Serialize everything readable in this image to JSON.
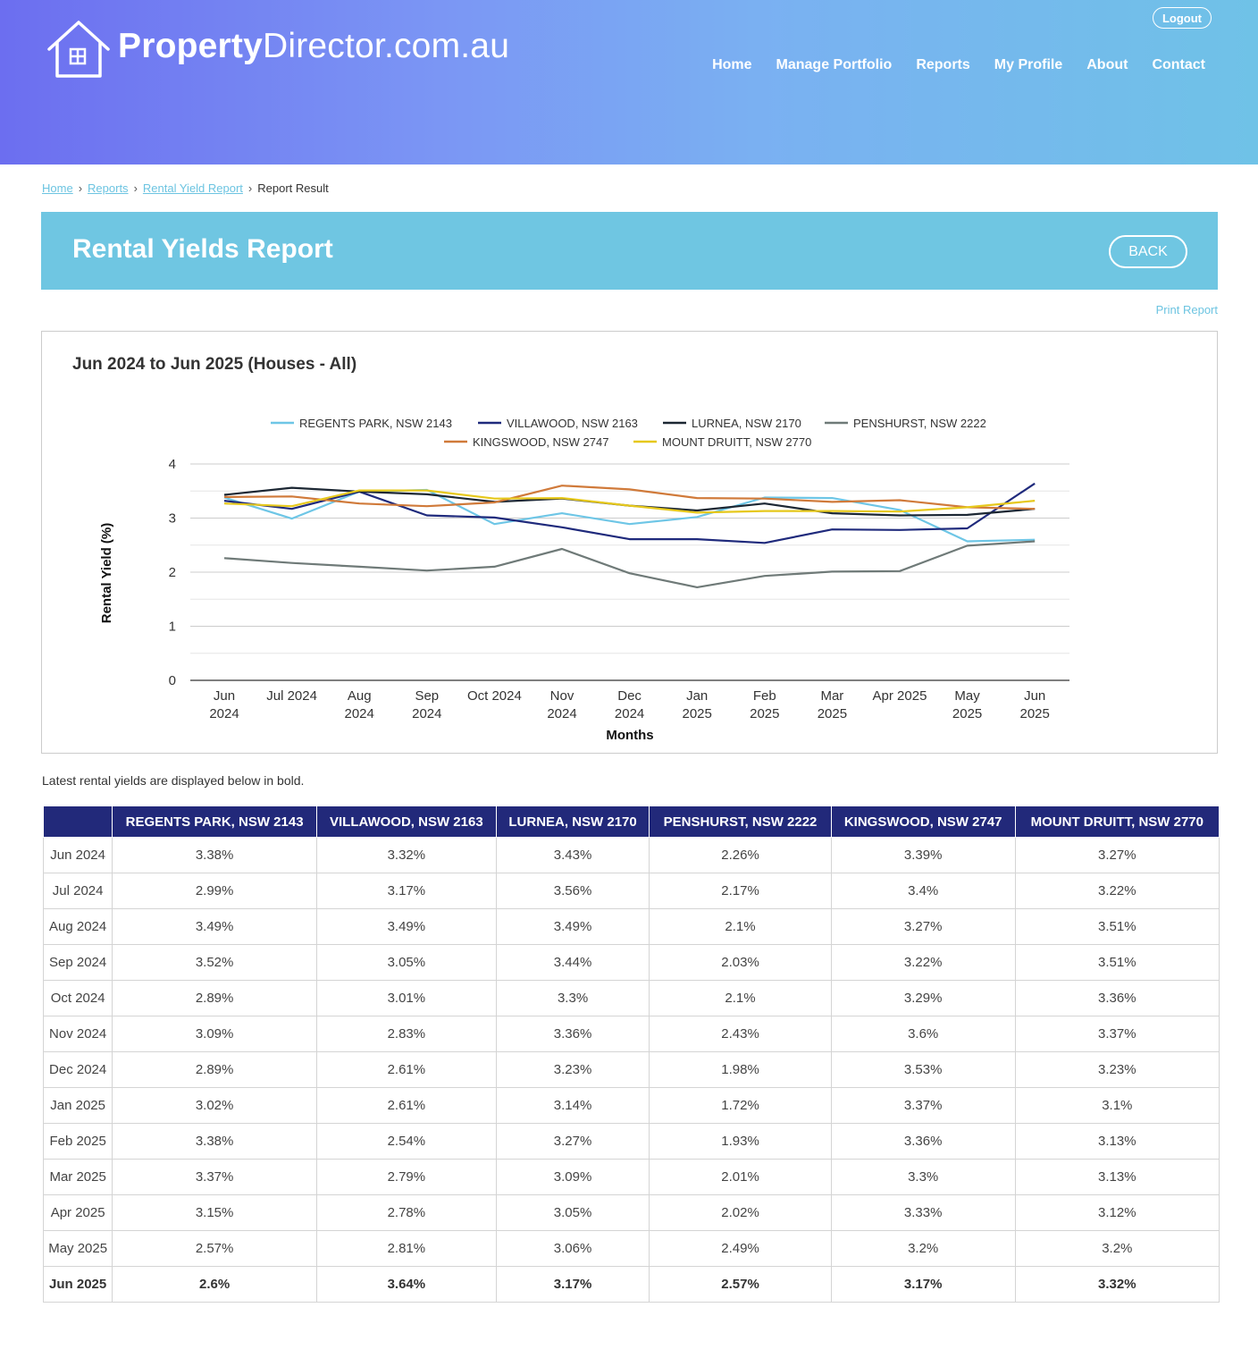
{
  "brand": {
    "logo_bold": "Property",
    "logo_regular": "Director.com.au"
  },
  "header": {
    "logout_label": "Logout",
    "nav": [
      "Home",
      "Manage Portfolio",
      "Reports",
      "My Profile",
      "About",
      "Contact"
    ]
  },
  "breadcrumb": {
    "home": "Home",
    "reports": "Reports",
    "rental_yield": "Rental Yield Report",
    "current": "Report Result"
  },
  "banner": {
    "title": "Rental Yields Report",
    "back_label": "BACK"
  },
  "print_label": "Print Report",
  "note": "Latest rental yields are displayed below in bold.",
  "colors": {
    "header_start": "#6c6ef0",
    "header_end": "#6fc2e7",
    "banner": "#6fc6e2",
    "table_header": "#22297a",
    "link": "#6cc4e1"
  },
  "chart_data": {
    "type": "line",
    "title": "Jun 2024 to Jun 2025 (Houses - All)",
    "xlabel": "Months",
    "ylabel": "Rental Yield (%)",
    "ylim": [
      0,
      4
    ],
    "yticks": [
      0,
      1,
      2,
      3,
      4
    ],
    "grid": true,
    "legend_position": "top",
    "categories": [
      [
        "Jun",
        "2024"
      ],
      [
        "Jul 2024"
      ],
      [
        "Aug",
        "2024"
      ],
      [
        "Sep",
        "2024"
      ],
      [
        "Oct 2024"
      ],
      [
        "Nov",
        "2024"
      ],
      [
        "Dec",
        "2024"
      ],
      [
        "Jan",
        "2025"
      ],
      [
        "Feb",
        "2025"
      ],
      [
        "Mar",
        "2025"
      ],
      [
        "Apr 2025"
      ],
      [
        "May",
        "2025"
      ],
      [
        "Jun",
        "2025"
      ]
    ],
    "series": [
      {
        "name": "REGENTS PARK, NSW 2143",
        "color": "#6ec6e6",
        "values": [
          3.38,
          2.99,
          3.49,
          3.52,
          2.89,
          3.09,
          2.89,
          3.02,
          3.38,
          3.37,
          3.15,
          2.57,
          2.6
        ]
      },
      {
        "name": "VILLAWOOD, NSW 2163",
        "color": "#1f2a7c",
        "values": [
          3.32,
          3.17,
          3.49,
          3.05,
          3.01,
          2.83,
          2.61,
          2.61,
          2.54,
          2.79,
          2.78,
          2.81,
          3.64
        ]
      },
      {
        "name": "LURNEA, NSW 2170",
        "color": "#1c2733",
        "values": [
          3.43,
          3.56,
          3.49,
          3.44,
          3.3,
          3.36,
          3.23,
          3.14,
          3.27,
          3.09,
          3.05,
          3.06,
          3.17
        ]
      },
      {
        "name": "PENSHURST, NSW 2222",
        "color": "#6f7a78",
        "values": [
          2.26,
          2.17,
          2.1,
          2.03,
          2.1,
          2.43,
          1.98,
          1.72,
          1.93,
          2.01,
          2.02,
          2.49,
          2.57
        ]
      },
      {
        "name": "KINGSWOOD, NSW 2747",
        "color": "#d07a3a",
        "values": [
          3.39,
          3.4,
          3.27,
          3.22,
          3.29,
          3.6,
          3.53,
          3.37,
          3.36,
          3.3,
          3.33,
          3.2,
          3.17
        ]
      },
      {
        "name": "MOUNT DRUITT, NSW 2770",
        "color": "#e6c81c",
        "values": [
          3.27,
          3.22,
          3.51,
          3.51,
          3.36,
          3.37,
          3.23,
          3.1,
          3.13,
          3.13,
          3.12,
          3.2,
          3.32
        ]
      }
    ]
  },
  "table": {
    "headers": [
      "",
      "REGENTS PARK, NSW 2143",
      "VILLAWOOD, NSW 2163",
      "LURNEA, NSW 2170",
      "PENSHURST, NSW 2222",
      "KINGSWOOD, NSW 2747",
      "MOUNT DRUITT, NSW 2770"
    ],
    "rows": [
      [
        "Jun 2024",
        "3.38%",
        "3.32%",
        "3.43%",
        "2.26%",
        "3.39%",
        "3.27%"
      ],
      [
        "Jul 2024",
        "2.99%",
        "3.17%",
        "3.56%",
        "2.17%",
        "3.4%",
        "3.22%"
      ],
      [
        "Aug 2024",
        "3.49%",
        "3.49%",
        "3.49%",
        "2.1%",
        "3.27%",
        "3.51%"
      ],
      [
        "Sep 2024",
        "3.52%",
        "3.05%",
        "3.44%",
        "2.03%",
        "3.22%",
        "3.51%"
      ],
      [
        "Oct 2024",
        "2.89%",
        "3.01%",
        "3.3%",
        "2.1%",
        "3.29%",
        "3.36%"
      ],
      [
        "Nov 2024",
        "3.09%",
        "2.83%",
        "3.36%",
        "2.43%",
        "3.6%",
        "3.37%"
      ],
      [
        "Dec 2024",
        "2.89%",
        "2.61%",
        "3.23%",
        "1.98%",
        "3.53%",
        "3.23%"
      ],
      [
        "Jan 2025",
        "3.02%",
        "2.61%",
        "3.14%",
        "1.72%",
        "3.37%",
        "3.1%"
      ],
      [
        "Feb 2025",
        "3.38%",
        "2.54%",
        "3.27%",
        "1.93%",
        "3.36%",
        "3.13%"
      ],
      [
        "Mar 2025",
        "3.37%",
        "2.79%",
        "3.09%",
        "2.01%",
        "3.3%",
        "3.13%"
      ],
      [
        "Apr 2025",
        "3.15%",
        "2.78%",
        "3.05%",
        "2.02%",
        "3.33%",
        "3.12%"
      ],
      [
        "May 2025",
        "2.57%",
        "2.81%",
        "3.06%",
        "2.49%",
        "3.2%",
        "3.2%"
      ],
      [
        "Jun 2025",
        "2.6%",
        "3.64%",
        "3.17%",
        "2.57%",
        "3.17%",
        "3.32%"
      ]
    ]
  }
}
